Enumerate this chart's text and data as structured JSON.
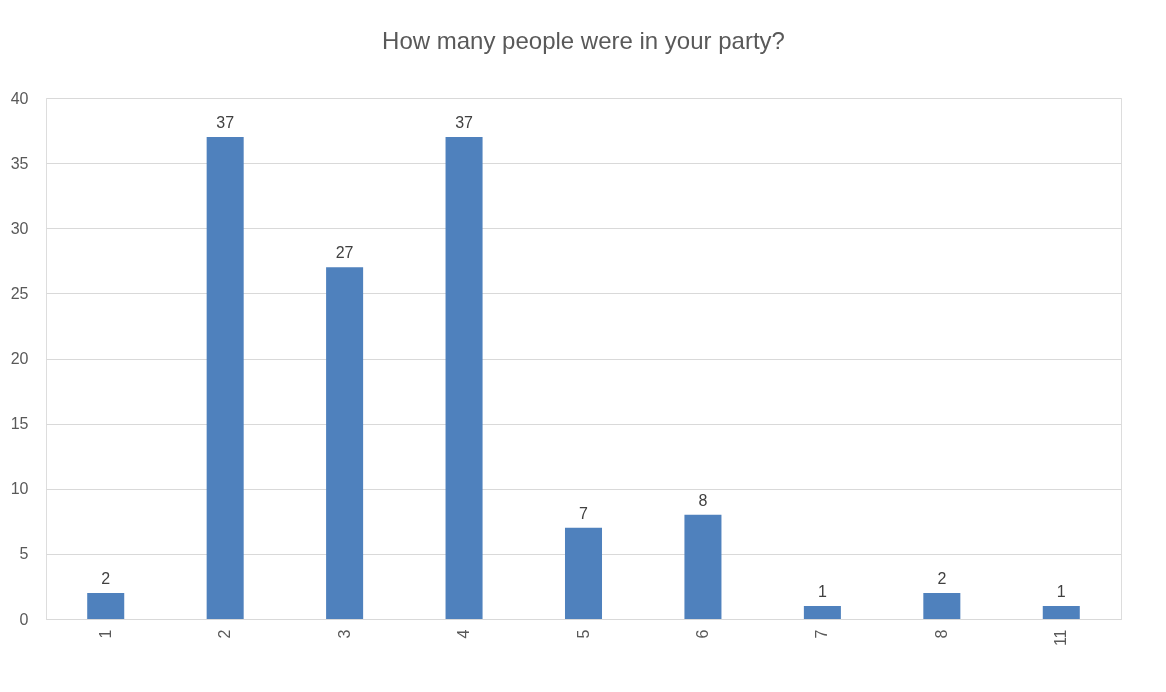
{
  "chart_data": {
    "type": "bar",
    "title": "How many people were in your party?",
    "categories": [
      "1",
      "2",
      "3",
      "4",
      "5",
      "6",
      "7",
      "8",
      "11"
    ],
    "values": [
      2,
      37,
      27,
      37,
      7,
      8,
      1,
      2,
      1
    ],
    "color": "#4f81bd",
    "ylim": [
      0,
      40
    ],
    "yticks": [
      0,
      5,
      10,
      15,
      20,
      25,
      30,
      35,
      40
    ],
    "grid": "y",
    "data_labels": true
  }
}
